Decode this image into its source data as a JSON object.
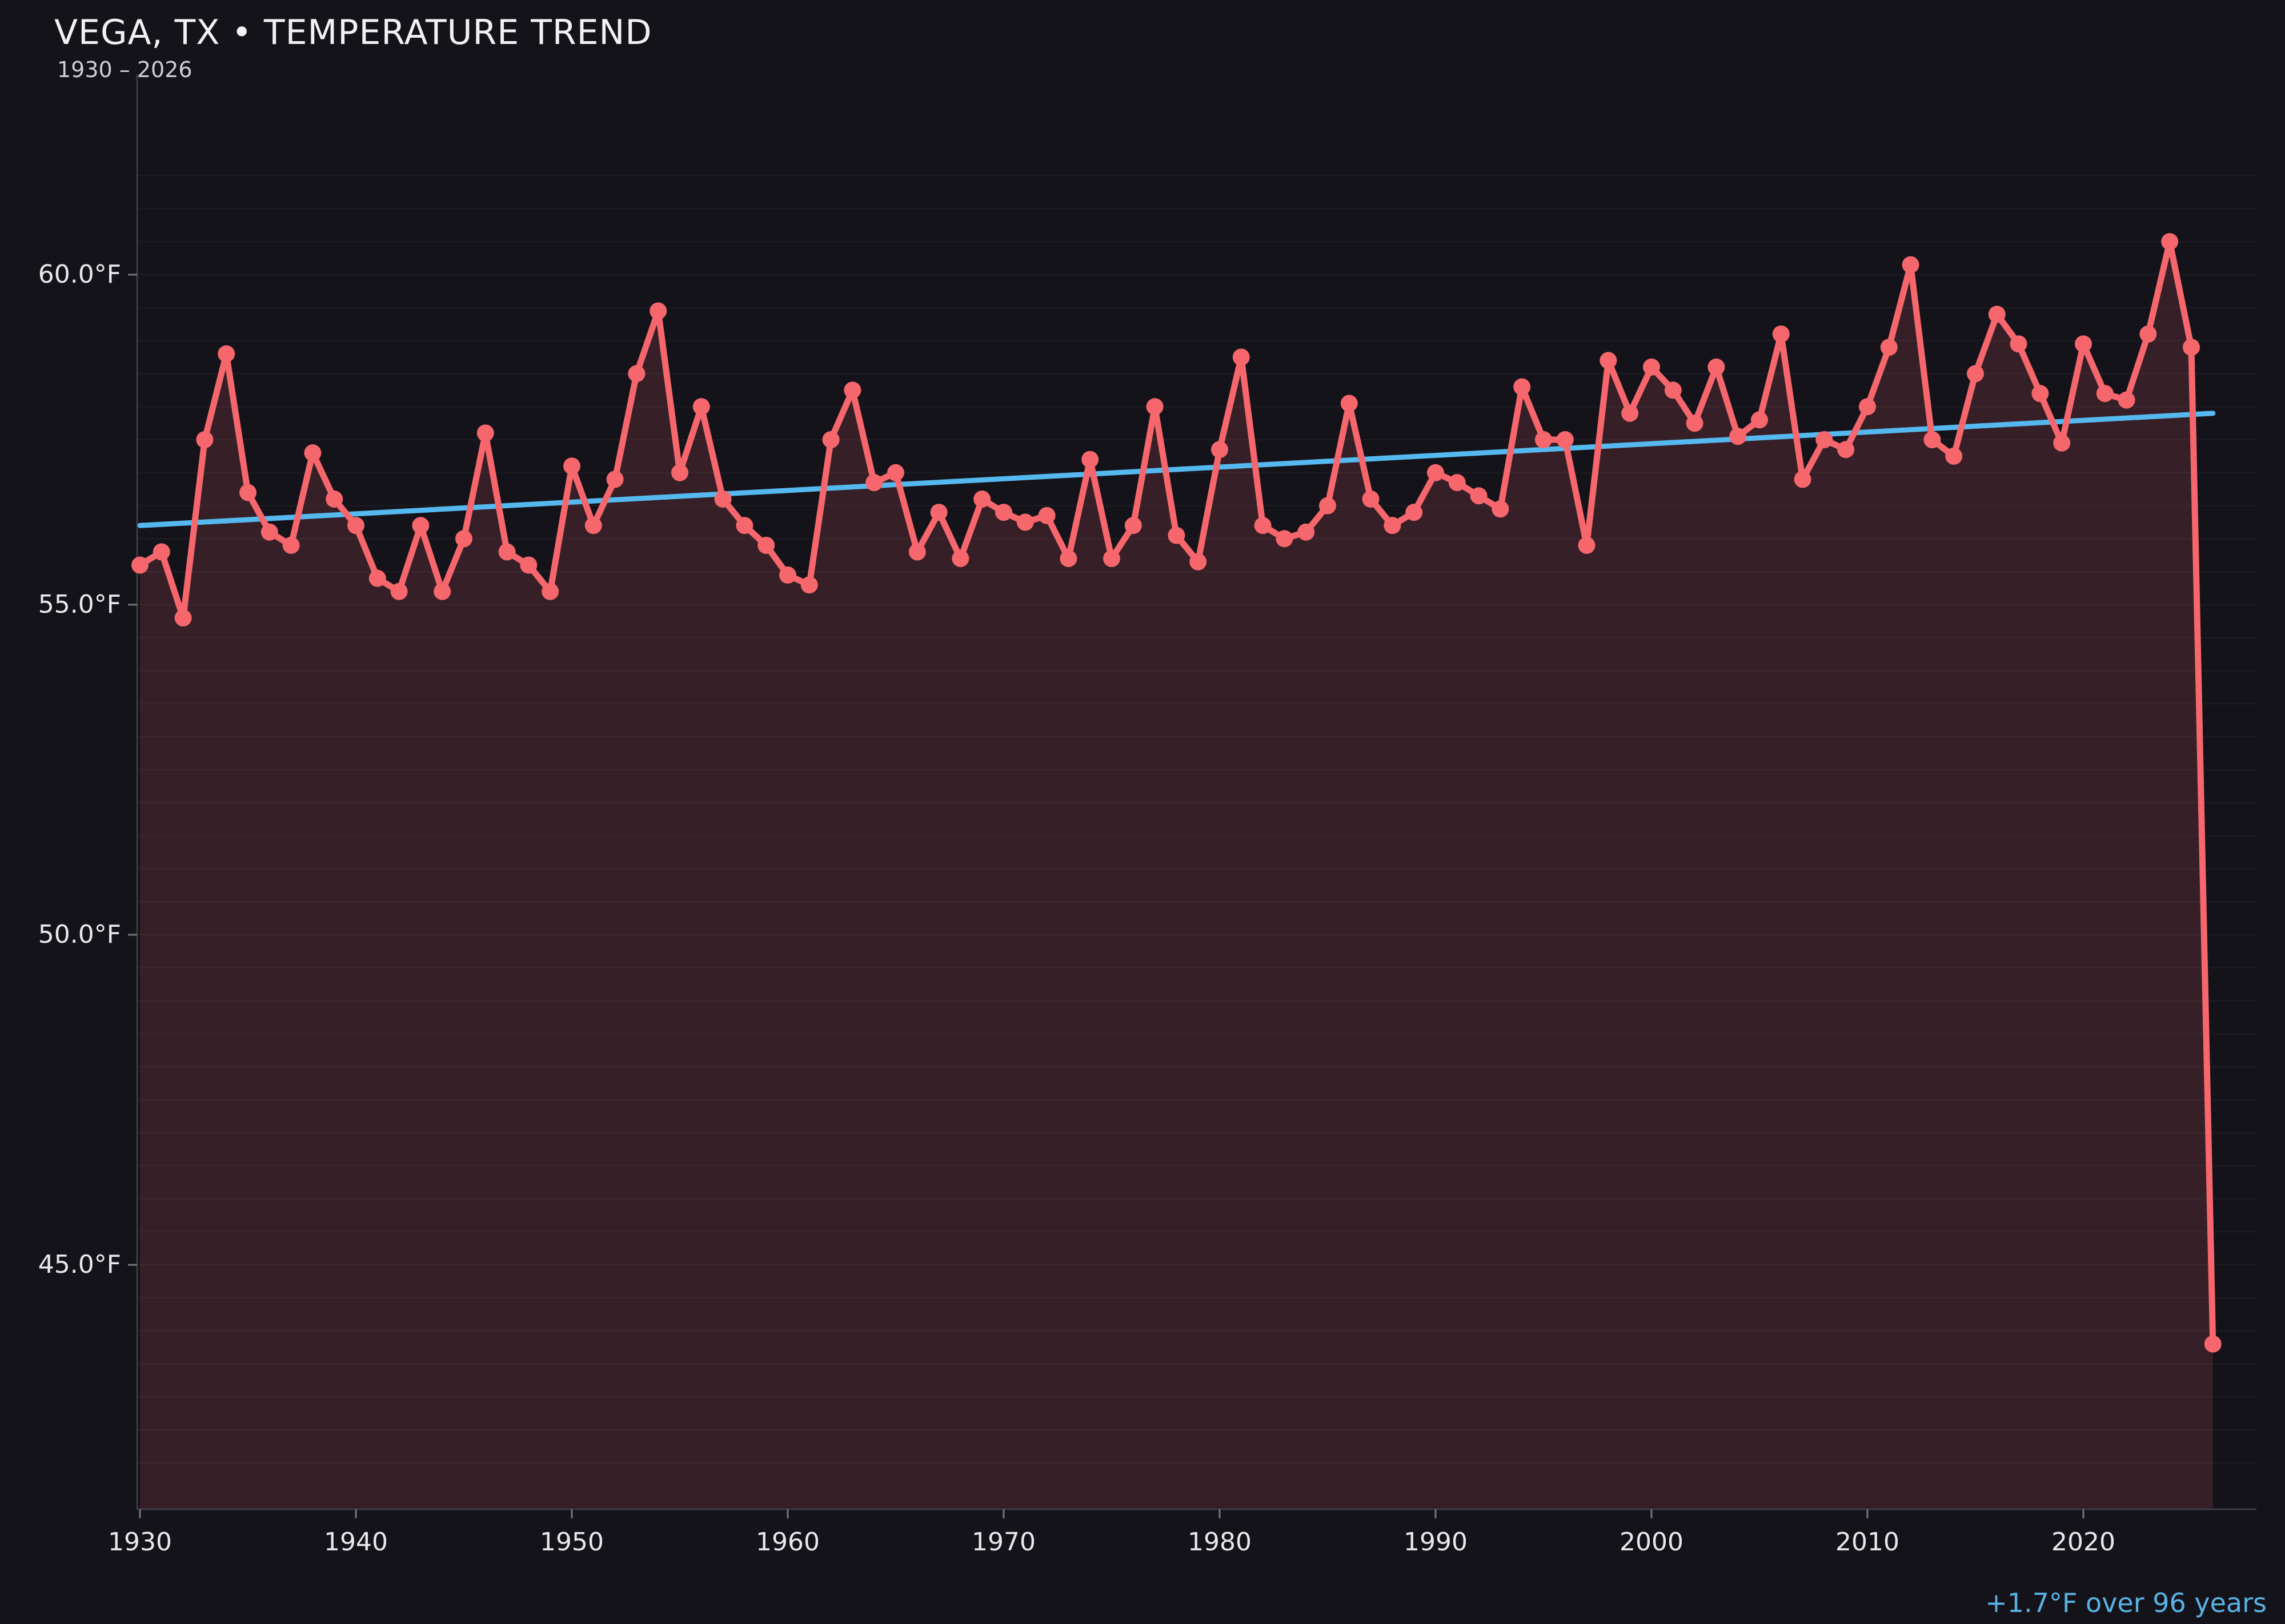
{
  "page": {
    "title": "VEGA, TX • TEMPERATURE TREND",
    "subtitle": "1930 – 2026"
  },
  "annotation": {
    "text": "+1.7°F over 96 years"
  },
  "colors": {
    "background": "#15131a",
    "line": "#f5676c",
    "fill": "rgba(245,103,108,0.15)",
    "trend": "#55b8ee",
    "annotation": "#58b2e4",
    "grid": "rgba(255,255,255,0.045)",
    "axis": "#3c3a44",
    "tick": "#75737e",
    "tick_label": "#e9e9ed",
    "title": "#f2f2f5",
    "subtitle": "#cfced6"
  },
  "chart_data": {
    "type": "line",
    "title": "VEGA, TX • TEMPERATURE TREND",
    "subtitle": "1930 – 2026",
    "xlabel": "",
    "ylabel": "",
    "unit": "°F",
    "start_year": 1930,
    "end_year": 2026,
    "x": [
      1930,
      1931,
      1932,
      1933,
      1934,
      1935,
      1936,
      1937,
      1938,
      1939,
      1940,
      1941,
      1942,
      1943,
      1944,
      1945,
      1946,
      1947,
      1948,
      1949,
      1950,
      1951,
      1952,
      1953,
      1954,
      1955,
      1956,
      1957,
      1958,
      1959,
      1960,
      1961,
      1962,
      1963,
      1964,
      1965,
      1966,
      1967,
      1968,
      1969,
      1970,
      1971,
      1972,
      1973,
      1974,
      1975,
      1976,
      1977,
      1978,
      1979,
      1980,
      1981,
      1982,
      1983,
      1984,
      1985,
      1986,
      1987,
      1988,
      1989,
      1990,
      1991,
      1992,
      1993,
      1994,
      1995,
      1996,
      1997,
      1998,
      1999,
      2000,
      2001,
      2002,
      2003,
      2004,
      2005,
      2006,
      2007,
      2008,
      2009,
      2010,
      2011,
      2012,
      2013,
      2014,
      2015,
      2016,
      2017,
      2018,
      2019,
      2020,
      2021,
      2022,
      2023,
      2024,
      2025,
      2026
    ],
    "values": [
      55.6,
      55.8,
      54.8,
      57.5,
      58.8,
      56.7,
      56.1,
      55.9,
      57.3,
      56.6,
      56.2,
      55.4,
      55.2,
      56.2,
      55.2,
      56.0,
      57.6,
      55.8,
      55.6,
      55.2,
      57.1,
      56.2,
      56.9,
      58.5,
      59.45,
      57.0,
      58.0,
      56.6,
      56.2,
      55.9,
      55.45,
      55.3,
      57.5,
      58.25,
      56.85,
      57.0,
      55.8,
      56.4,
      55.7,
      56.6,
      56.4,
      56.25,
      56.35,
      55.7,
      57.2,
      55.7,
      56.2,
      58.0,
      56.05,
      55.65,
      57.35,
      58.75,
      56.2,
      56.0,
      56.1,
      56.5,
      58.05,
      56.6,
      56.2,
      56.4,
      57.0,
      56.85,
      56.65,
      56.45,
      58.3,
      57.5,
      57.5,
      55.9,
      58.7,
      57.9,
      58.6,
      58.25,
      57.75,
      58.6,
      57.55,
      57.8,
      59.1,
      56.9,
      57.5,
      57.35,
      58.0,
      58.9,
      60.15,
      57.5,
      57.25,
      58.5,
      59.4,
      58.95,
      58.2,
      57.45,
      58.95,
      58.2,
      58.1,
      59.1,
      60.5,
      58.9,
      43.8
    ],
    "trend_line": {
      "start_year": 1930,
      "end_year": 2026,
      "start_value": 56.2,
      "end_value": 57.9,
      "label": "+1.7°F over 96 years"
    },
    "y_ticks": [
      {
        "value": 45,
        "label": "45.0°F"
      },
      {
        "value": 50,
        "label": "50.0°F"
      },
      {
        "value": 55,
        "label": "55.0°F"
      },
      {
        "value": 60,
        "label": "60.0°F"
      }
    ],
    "x_ticks": [
      {
        "value": 1930,
        "label": "1930"
      },
      {
        "value": 1940,
        "label": "1940"
      },
      {
        "value": 1950,
        "label": "1950"
      },
      {
        "value": 1960,
        "label": "1960"
      },
      {
        "value": 1970,
        "label": "1970"
      },
      {
        "value": 1980,
        "label": "1980"
      },
      {
        "value": 1990,
        "label": "1990"
      },
      {
        "value": 2000,
        "label": "2000"
      },
      {
        "value": 2010,
        "label": "2010"
      },
      {
        "value": 2020,
        "label": "2020"
      }
    ],
    "ylim": [
      41.3,
      63.0
    ],
    "xlim": [
      1929.9,
      2028.0
    ],
    "grid": {
      "orientation": "horizontal",
      "step": 0.5,
      "min": 42.0,
      "max": 61.5
    },
    "legend": null
  }
}
